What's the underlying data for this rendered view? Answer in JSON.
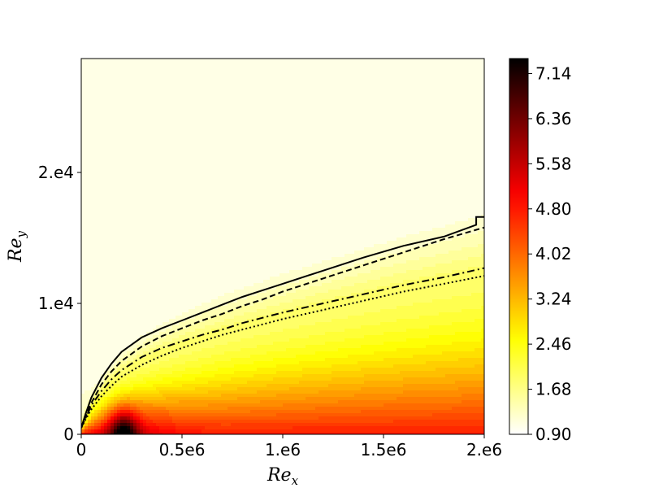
{
  "chart_data": {
    "type": "contourf",
    "title": "",
    "xlabel": "Re",
    "xlabel_sub": "x",
    "ylabel": "Re",
    "ylabel_sub": "y",
    "xlim": [
      0,
      2000000
    ],
    "ylim": [
      0,
      28700
    ],
    "x_ticks": [
      {
        "value": 0,
        "label": "0"
      },
      {
        "value": 500000,
        "label": "0.5e6"
      },
      {
        "value": 1000000,
        "label": "1.e6"
      },
      {
        "value": 1500000,
        "label": "1.5e6"
      },
      {
        "value": 2000000,
        "label": "2.e6"
      }
    ],
    "y_ticks": [
      {
        "value": 0,
        "label": "0"
      },
      {
        "value": 10000,
        "label": "1.e4"
      },
      {
        "value": 20000,
        "label": "2.e4"
      }
    ],
    "colorbar": {
      "cmap": "hot_r",
      "range": [
        0.9,
        7.4
      ],
      "ticks": [
        {
          "value": 0.9,
          "label": "0.90"
        },
        {
          "value": 1.68,
          "label": "1.68"
        },
        {
          "value": 2.46,
          "label": "2.46"
        },
        {
          "value": 3.24,
          "label": "3.24"
        },
        {
          "value": 4.02,
          "label": "4.02"
        },
        {
          "value": 4.8,
          "label": "4.80"
        },
        {
          "value": 5.58,
          "label": "5.58"
        },
        {
          "value": 6.36,
          "label": "6.36"
        },
        {
          "value": 7.14,
          "label": "7.14"
        }
      ]
    },
    "contour_lines": [
      {
        "style": "solid",
        "points": [
          [
            0,
            500
          ],
          [
            20000,
            1500
          ],
          [
            50000,
            2800
          ],
          [
            100000,
            4300
          ],
          [
            150000,
            5400
          ],
          [
            200000,
            6300
          ],
          [
            300000,
            7400
          ],
          [
            400000,
            8100
          ],
          [
            500000,
            8700
          ],
          [
            600000,
            9300
          ],
          [
            700000,
            9900
          ],
          [
            800000,
            10500
          ],
          [
            900000,
            11000
          ],
          [
            1000000,
            11500
          ],
          [
            1200000,
            12500
          ],
          [
            1400000,
            13500
          ],
          [
            1600000,
            14400
          ],
          [
            1800000,
            15100
          ],
          [
            1960000,
            16000
          ],
          [
            1960000,
            16600
          ],
          [
            2000000,
            16600
          ]
        ]
      },
      {
        "style": "dashed",
        "points": [
          [
            0,
            500
          ],
          [
            20000,
            1300
          ],
          [
            50000,
            2400
          ],
          [
            100000,
            3800
          ],
          [
            150000,
            4800
          ],
          [
            200000,
            5600
          ],
          [
            300000,
            6700
          ],
          [
            400000,
            7500
          ],
          [
            500000,
            8100
          ],
          [
            600000,
            8700
          ],
          [
            700000,
            9200
          ],
          [
            800000,
            9800
          ],
          [
            900000,
            10300
          ],
          [
            1000000,
            10900
          ],
          [
            1200000,
            11900
          ],
          [
            1400000,
            12900
          ],
          [
            1600000,
            13900
          ],
          [
            1800000,
            14900
          ],
          [
            2000000,
            15800
          ]
        ]
      },
      {
        "style": "dashdot",
        "points": [
          [
            0,
            500
          ],
          [
            20000,
            1200
          ],
          [
            50000,
            2200
          ],
          [
            100000,
            3300
          ],
          [
            150000,
            4200
          ],
          [
            200000,
            4900
          ],
          [
            300000,
            5900
          ],
          [
            400000,
            6600
          ],
          [
            500000,
            7100
          ],
          [
            600000,
            7600
          ],
          [
            700000,
            8000
          ],
          [
            800000,
            8500
          ],
          [
            900000,
            8900
          ],
          [
            1000000,
            9300
          ],
          [
            1200000,
            10000
          ],
          [
            1400000,
            10700
          ],
          [
            1600000,
            11400
          ],
          [
            1800000,
            12000
          ],
          [
            2000000,
            12700
          ]
        ]
      },
      {
        "style": "dotted",
        "points": [
          [
            0,
            500
          ],
          [
            20000,
            1100
          ],
          [
            50000,
            1900
          ],
          [
            100000,
            2900
          ],
          [
            150000,
            3700
          ],
          [
            200000,
            4400
          ],
          [
            300000,
            5300
          ],
          [
            400000,
            6000
          ],
          [
            500000,
            6600
          ],
          [
            600000,
            7100
          ],
          [
            700000,
            7600
          ],
          [
            800000,
            8000
          ],
          [
            900000,
            8400
          ],
          [
            1000000,
            8800
          ],
          [
            1200000,
            9500
          ],
          [
            1400000,
            10200
          ],
          [
            1600000,
            10900
          ],
          [
            1800000,
            11500
          ],
          [
            2000000,
            12100
          ]
        ]
      }
    ],
    "field_peak": {
      "x": 210000,
      "y": 0,
      "value": 7.4
    }
  }
}
